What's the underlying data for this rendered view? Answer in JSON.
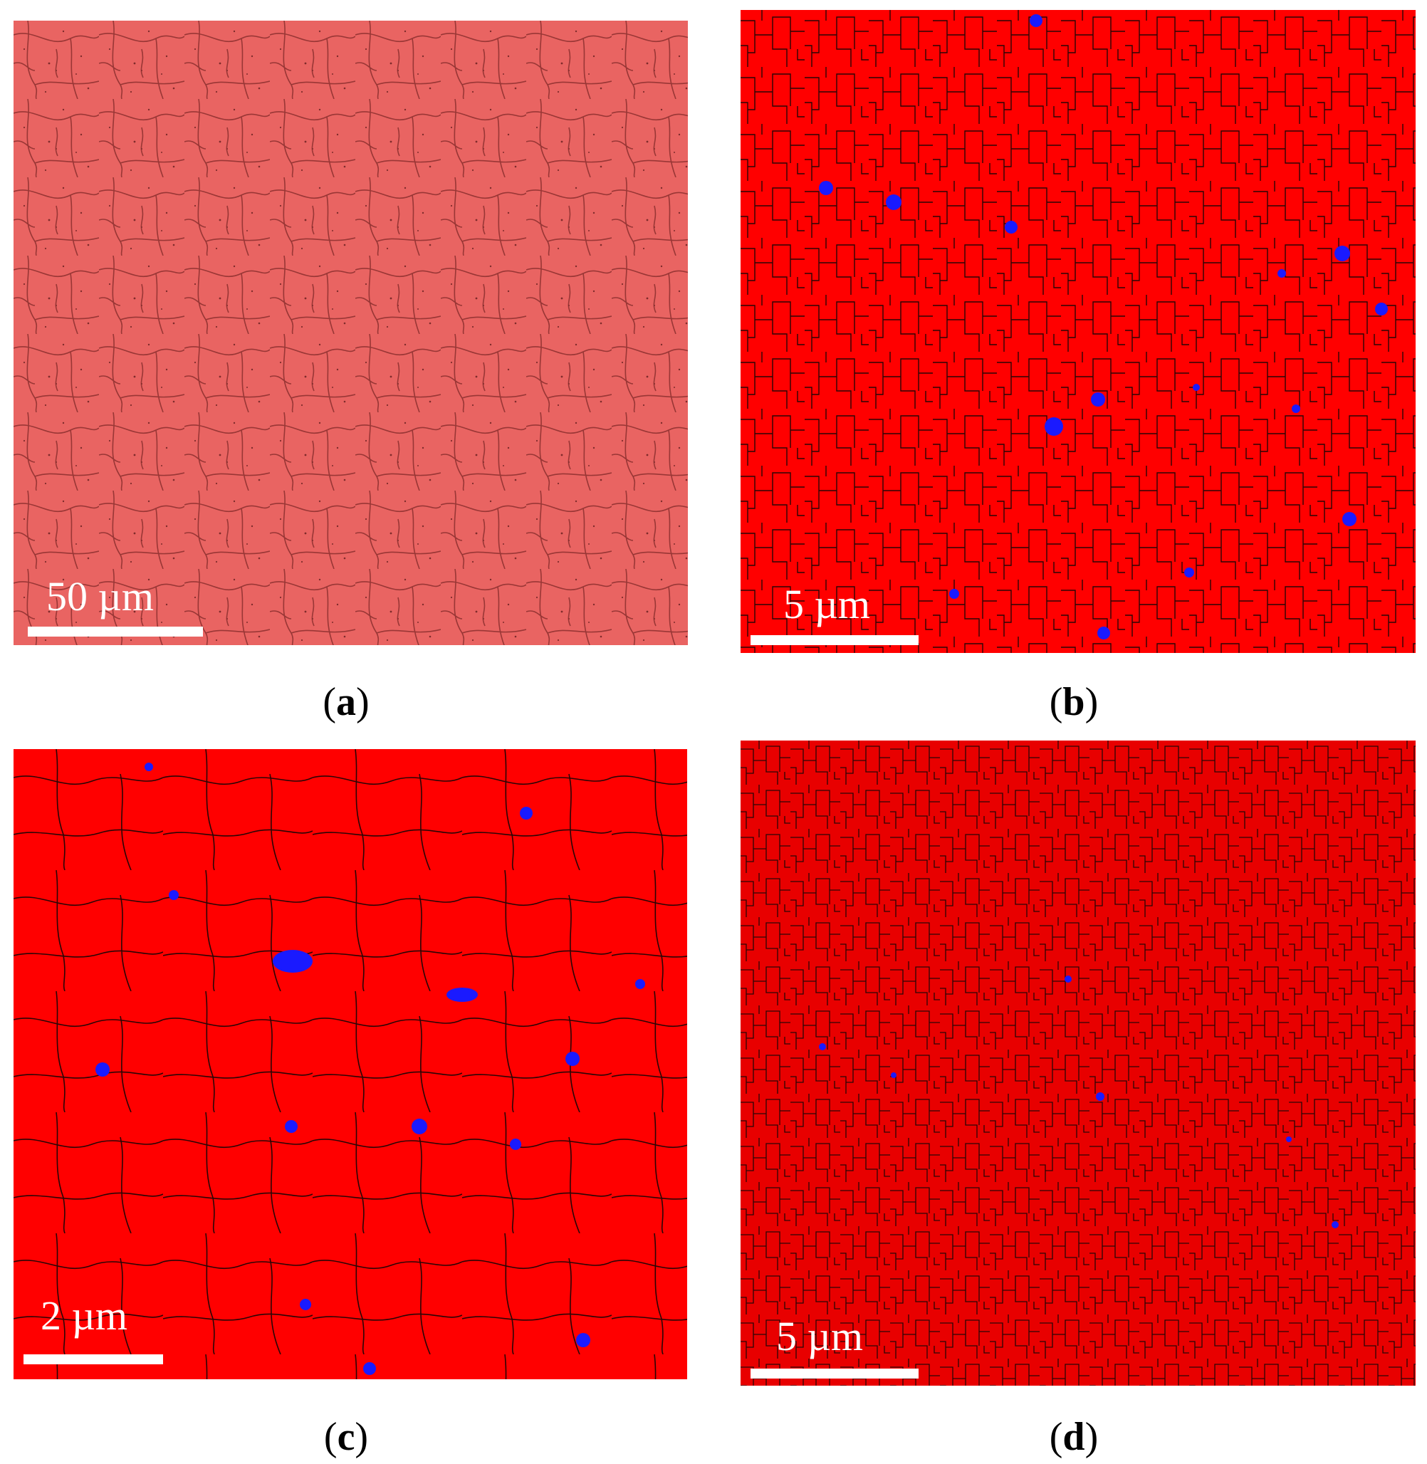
{
  "panels": [
    {
      "id": "a",
      "scale_label": "50 µm",
      "caption_letter": "a"
    },
    {
      "id": "b",
      "scale_label": "5 µm",
      "caption_letter": "b"
    },
    {
      "id": "c",
      "scale_label": "2 µm",
      "caption_letter": "c"
    },
    {
      "id": "d",
      "scale_label": "5 µm",
      "caption_letter": "d"
    }
  ],
  "colors": {
    "panel_a_matrix": "#e8615e",
    "phase_red": "#ff0000",
    "phase_blue": "#1a1aff",
    "grain_boundary": "#3a0a0a"
  }
}
